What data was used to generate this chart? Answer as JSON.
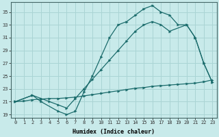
{
  "xlabel": "Humidex (Indice chaleur)",
  "bg_color": "#c8eaea",
  "grid_color": "#aad4d4",
  "line_color": "#1a6b6b",
  "xlim": [
    -0.5,
    23.5
  ],
  "ylim": [
    18.5,
    36.5
  ],
  "xticks": [
    0,
    1,
    2,
    3,
    4,
    5,
    6,
    7,
    8,
    9,
    10,
    11,
    12,
    13,
    14,
    15,
    16,
    17,
    18,
    19,
    20,
    21,
    22,
    23
  ],
  "yticks": [
    19,
    21,
    23,
    25,
    27,
    29,
    31,
    33,
    35
  ],
  "l1x": [
    0,
    1,
    2,
    3,
    4,
    5,
    6,
    7,
    8,
    9,
    10,
    11,
    12,
    13,
    14,
    15,
    16,
    17,
    18,
    19,
    20,
    21,
    22,
    23
  ],
  "l1y": [
    21.0,
    21.1,
    21.3,
    21.4,
    21.5,
    21.5,
    21.6,
    21.7,
    21.9,
    22.1,
    22.3,
    22.5,
    22.7,
    22.9,
    23.1,
    23.2,
    23.4,
    23.5,
    23.6,
    23.7,
    23.8,
    23.9,
    24.1,
    24.4
  ],
  "l2x": [
    0,
    2,
    3,
    5,
    6,
    7,
    8,
    9,
    10,
    11,
    12,
    13,
    14,
    15,
    16,
    17,
    18,
    19,
    20,
    21,
    22,
    23
  ],
  "l2y": [
    21.0,
    22.0,
    21.0,
    19.5,
    19.0,
    19.5,
    22.5,
    25.0,
    28.0,
    31.0,
    33.0,
    33.5,
    34.5,
    35.5,
    36.0,
    35.0,
    34.5,
    33.0,
    33.0,
    31.0,
    27.0,
    24.0
  ],
  "l3x": [
    0,
    2,
    3,
    4,
    5,
    6,
    7,
    8,
    9,
    10,
    11,
    12,
    13,
    14,
    15,
    16,
    17,
    18,
    20,
    21,
    22,
    23
  ],
  "l3y": [
    21.0,
    22.0,
    21.5,
    21.0,
    20.5,
    20.0,
    21.5,
    23.0,
    24.5,
    26.0,
    27.5,
    29.0,
    30.5,
    32.0,
    33.0,
    33.5,
    33.0,
    32.0,
    33.0,
    31.0,
    27.0,
    24.0
  ]
}
